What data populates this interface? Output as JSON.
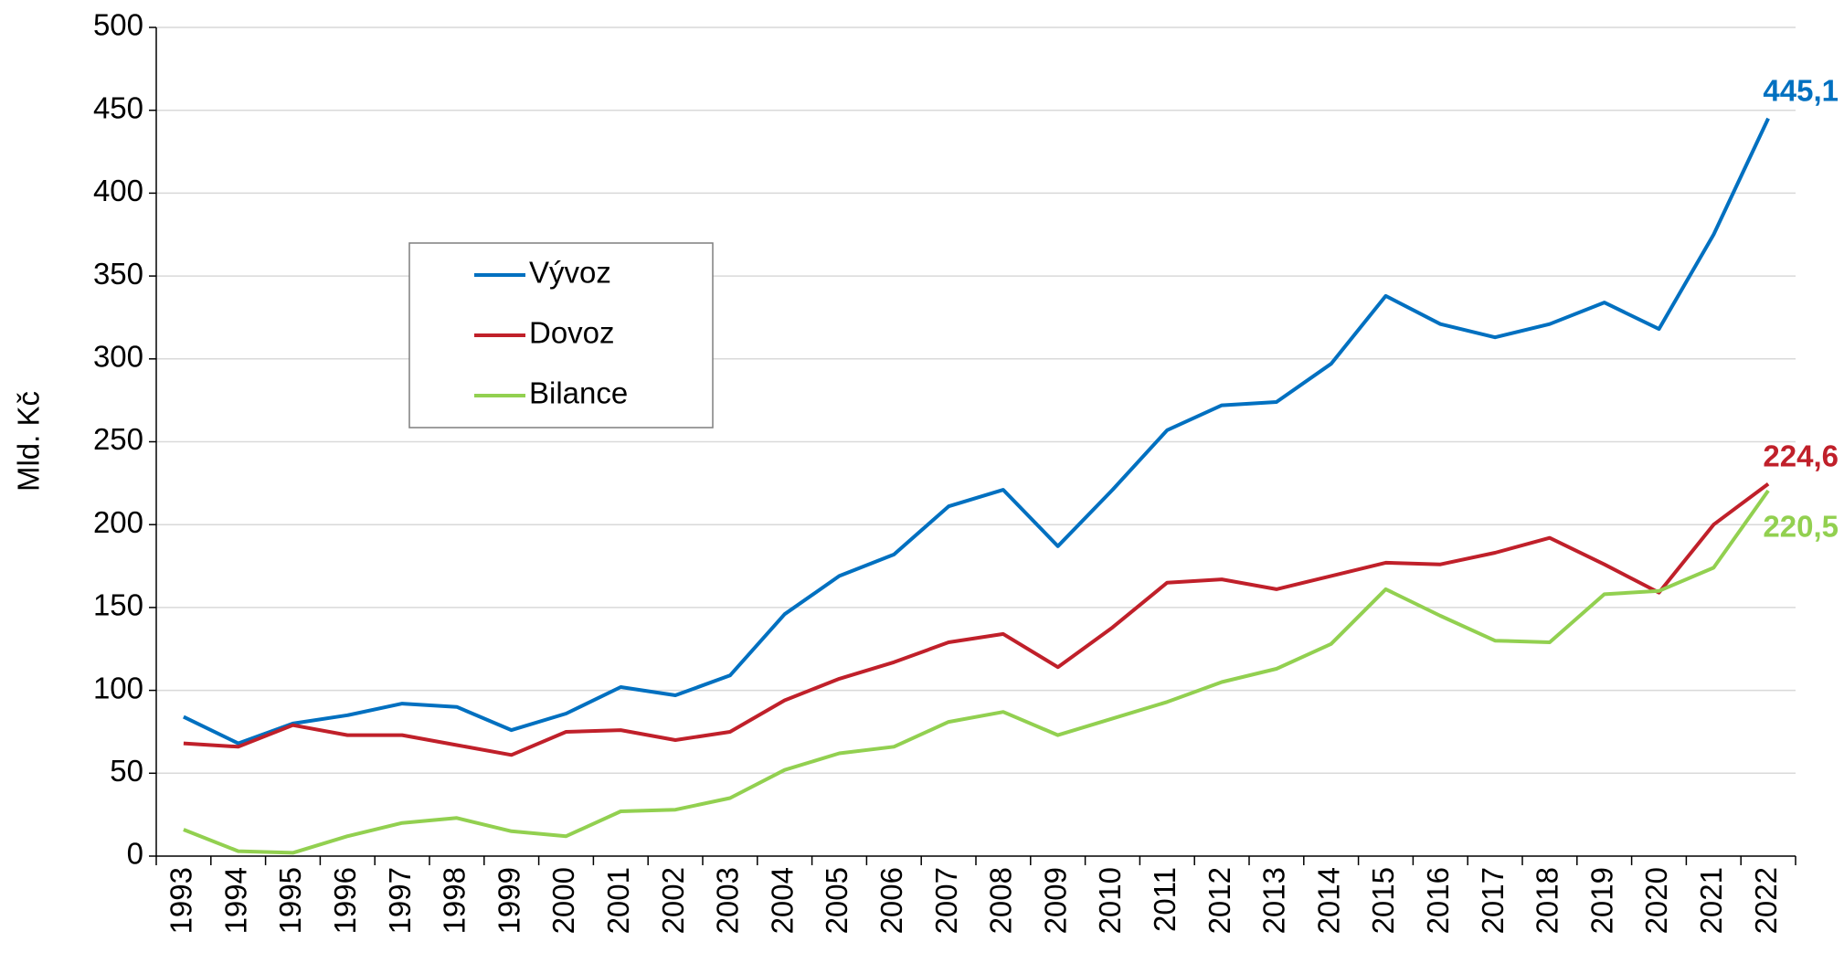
{
  "chart_data": {
    "type": "line",
    "y_label": "Mld. Kč",
    "categories": [
      "1993",
      "1994",
      "1995",
      "1996",
      "1997",
      "1998",
      "1999",
      "2000",
      "2001",
      "2002",
      "2003",
      "2004",
      "2005",
      "2006",
      "2007",
      "2008",
      "2009",
      "2010",
      "2011",
      "2012",
      "2013",
      "2014",
      "2015",
      "2016",
      "2017",
      "2018",
      "2019",
      "2020",
      "2021",
      "2022"
    ],
    "series": [
      {
        "name": "Vývoz",
        "color": "#0070C0",
        "values": [
          84,
          68,
          80,
          85,
          92,
          90,
          76,
          86,
          102,
          97,
          109,
          146,
          169,
          182,
          211,
          221,
          187,
          221,
          257,
          272,
          274,
          297,
          338,
          321,
          313,
          321,
          334,
          318,
          375,
          445.1
        ],
        "value_labels": [
          null,
          null,
          null,
          null,
          null,
          null,
          null,
          null,
          null,
          null,
          null,
          null,
          null,
          null,
          null,
          null,
          null,
          null,
          null,
          null,
          null,
          null,
          null,
          null,
          null,
          null,
          null,
          null,
          null,
          "445,1"
        ]
      },
      {
        "name": "Dovoz",
        "color": "#C0202A",
        "values": [
          68,
          66,
          79,
          73,
          73,
          67,
          61,
          75,
          76,
          70,
          75,
          94,
          107,
          117,
          129,
          134,
          114,
          138,
          165,
          167,
          161,
          169,
          177,
          176,
          183,
          192,
          176,
          159,
          200,
          224.6
        ],
        "value_labels": [
          null,
          null,
          null,
          null,
          null,
          null,
          null,
          null,
          null,
          null,
          null,
          null,
          null,
          null,
          null,
          null,
          null,
          null,
          null,
          null,
          null,
          null,
          null,
          null,
          null,
          null,
          null,
          null,
          null,
          "224,6"
        ]
      },
      {
        "name": "Bilance",
        "color": "#92D050",
        "values": [
          16,
          3,
          2,
          12,
          20,
          23,
          15,
          12,
          27,
          28,
          35,
          52,
          62,
          66,
          81,
          87,
          73,
          83,
          93,
          105,
          113,
          128,
          161,
          145,
          130,
          129,
          158,
          160,
          174,
          220.5
        ],
        "value_labels": [
          null,
          null,
          null,
          null,
          null,
          null,
          null,
          null,
          null,
          null,
          null,
          null,
          null,
          null,
          null,
          null,
          null,
          null,
          null,
          null,
          null,
          null,
          null,
          null,
          null,
          null,
          null,
          null,
          null,
          "220,5"
        ]
      }
    ],
    "ylim": [
      0,
      500
    ],
    "yticks": [
      0,
      50,
      100,
      150,
      200,
      250,
      300,
      350,
      400,
      450,
      500
    ],
    "grid": true,
    "legend": "left"
  }
}
